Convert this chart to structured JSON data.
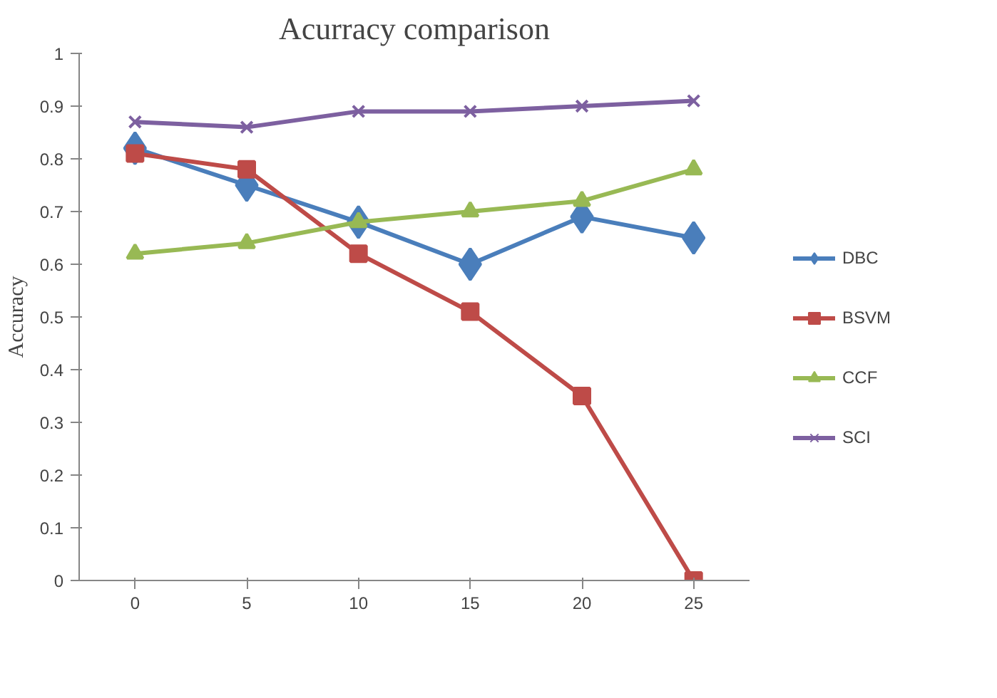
{
  "chart_data": {
    "type": "line",
    "title": "Acurracy comparison",
    "ylabel": "Accuracy",
    "categories": [
      "0",
      "5",
      "10",
      "15",
      "20",
      "25"
    ],
    "ylim": [
      0,
      1
    ],
    "yticks": [
      0,
      0.1,
      0.2,
      0.3,
      0.4,
      0.5,
      0.6,
      0.7,
      0.8,
      0.9,
      1
    ],
    "grid": false,
    "legend": "right",
    "series": [
      {
        "name": "DBC",
        "color": "#4a7ebb",
        "marker": "diamond",
        "values": [
          0.82,
          0.75,
          0.68,
          0.6,
          0.69,
          0.65
        ]
      },
      {
        "name": "BSVM",
        "color": "#be4b48",
        "marker": "square",
        "values": [
          0.81,
          0.78,
          0.62,
          0.51,
          0.35,
          0
        ]
      },
      {
        "name": "CCF",
        "color": "#98b954",
        "marker": "triangle",
        "values": [
          0.62,
          0.64,
          0.68,
          0.7,
          0.72,
          0.78
        ]
      },
      {
        "name": "SCI",
        "color": "#7d60a0",
        "marker": "cross",
        "values": [
          0.87,
          0.86,
          0.89,
          0.89,
          0.9,
          0.91
        ]
      }
    ]
  }
}
